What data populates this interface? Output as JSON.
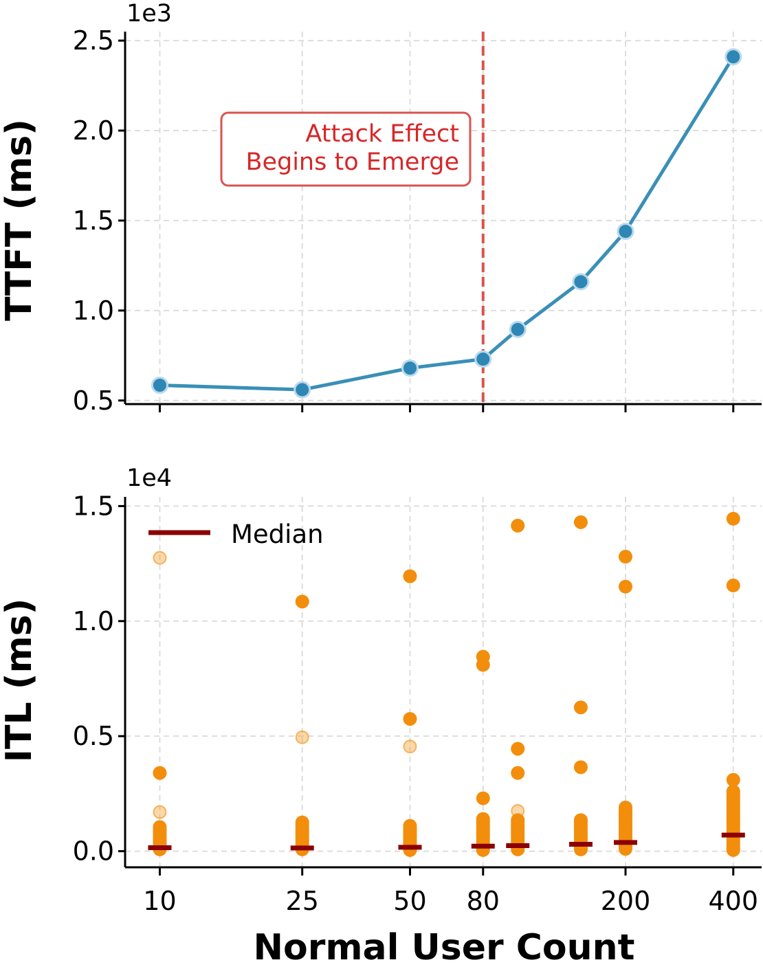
{
  "chart_data": [
    {
      "type": "line",
      "x": [
        10,
        25,
        50,
        80,
        100,
        150,
        200,
        400
      ],
      "series": [
        {
          "name": "TTFT",
          "values": [
            585,
            560,
            680,
            730,
            895,
            1160,
            1440,
            2410
          ],
          "color": "#3a8fb7"
        }
      ],
      "xscale": "log",
      "xlim": [
        8,
        480
      ],
      "ylim": [
        480,
        2550
      ],
      "yticks": [
        500,
        1000,
        1500,
        2000,
        2500
      ],
      "ytick_labels": [
        "0.5",
        "1.0",
        "1.5",
        "2.0",
        "2.5"
      ],
      "offset_label": "1e3",
      "ylabel": "TTFT (ms)",
      "grid": true,
      "vline": {
        "x": 80,
        "color": "#d9534f"
      },
      "annotation": {
        "line1": "Attack Effect",
        "line2": "Begins to Emerge",
        "color": "#d62728"
      }
    },
    {
      "type": "scatter",
      "x_categories": [
        10,
        25,
        50,
        80,
        100,
        150,
        200,
        400
      ],
      "xscale": "log",
      "xlim": [
        8,
        480
      ],
      "ylim": [
        -700,
        15400
      ],
      "yticks": [
        0,
        5000,
        10000,
        15000
      ],
      "ytick_labels": [
        "0.0",
        "0.5",
        "1.0",
        "1.5"
      ],
      "offset_label": "1e4",
      "ylabel": "ITL (ms)",
      "xlabel": "Normal User Count",
      "xticks": [
        10,
        25,
        50,
        80,
        200,
        400
      ],
      "xtick_labels": [
        "10",
        "25",
        "50",
        "80",
        "200",
        "400"
      ],
      "grid": true,
      "point_color": "#f28e0c",
      "median_color": "#8b0000",
      "legend": {
        "label": "Median",
        "position": "top-left"
      },
      "points": [
        {
          "x": 10,
          "solid": [
            3400,
            1050,
            950,
            850,
            750,
            650,
            550,
            450,
            350,
            250,
            150,
            80
          ],
          "faint": [
            12750,
            1700
          ]
        },
        {
          "x": 25,
          "solid": [
            10850,
            1250,
            1150,
            1050,
            950,
            850,
            750,
            650,
            550,
            450,
            350,
            250,
            150,
            80
          ],
          "faint": [
            4950
          ]
        },
        {
          "x": 50,
          "solid": [
            11950,
            5750,
            1100,
            1000,
            900,
            800,
            700,
            600,
            500,
            400,
            300,
            200,
            100,
            50
          ],
          "faint": [
            4550
          ]
        },
        {
          "x": 80,
          "solid": [
            8450,
            8100,
            2300,
            1400,
            1300,
            1200,
            1100,
            1000,
            900,
            800,
            700,
            600,
            500,
            400,
            300,
            200,
            100,
            50
          ],
          "faint": []
        },
        {
          "x": 100,
          "solid": [
            14150,
            4450,
            3400,
            1350,
            1250,
            1150,
            1050,
            950,
            850,
            750,
            650,
            550,
            450,
            350,
            250,
            150,
            80
          ],
          "faint": [
            1750
          ]
        },
        {
          "x": 150,
          "solid": [
            14300,
            6250,
            3650,
            1350,
            1250,
            1150,
            1050,
            950,
            850,
            750,
            650,
            550,
            450,
            350,
            250,
            150,
            80
          ],
          "faint": []
        },
        {
          "x": 200,
          "solid": [
            12800,
            11500,
            1900,
            1800,
            1700,
            1600,
            1500,
            1400,
            1300,
            1200,
            1100,
            1000,
            900,
            800,
            700,
            600,
            500,
            400,
            300,
            200,
            100
          ],
          "faint": []
        },
        {
          "x": 400,
          "solid": [
            14450,
            11550,
            3100,
            2600,
            2500,
            2400,
            2300,
            2200,
            2100,
            2000,
            1900,
            1800,
            1700,
            1600,
            1500,
            1400,
            1300,
            1200,
            1100,
            1000,
            900,
            800,
            700,
            600,
            500,
            400,
            300,
            200,
            100,
            50
          ],
          "faint": []
        }
      ],
      "medians": [
        {
          "x": 10,
          "value": 150
        },
        {
          "x": 25,
          "value": 140
        },
        {
          "x": 50,
          "value": 170
        },
        {
          "x": 80,
          "value": 220
        },
        {
          "x": 100,
          "value": 240
        },
        {
          "x": 150,
          "value": 300
        },
        {
          "x": 200,
          "value": 380
        },
        {
          "x": 400,
          "value": 700
        }
      ]
    }
  ]
}
